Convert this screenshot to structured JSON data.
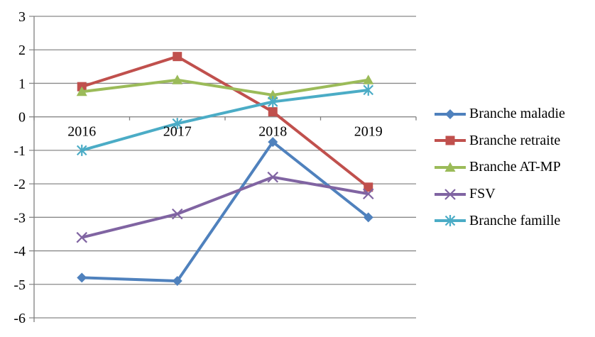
{
  "chart_data": {
    "type": "line",
    "title": "",
    "categories": [
      "2016",
      "2017",
      "2018",
      "2019"
    ],
    "series": [
      {
        "name": "Branche maladie",
        "color": "#4F81BD",
        "marker": "diamond",
        "values": [
          -4.8,
          -4.9,
          -0.75,
          -3.0
        ]
      },
      {
        "name": "Branche retraite",
        "color": "#C0504D",
        "marker": "square",
        "values": [
          0.9,
          1.8,
          0.15,
          -2.1
        ]
      },
      {
        "name": "Branche AT-MP",
        "color": "#9BBB59",
        "marker": "triangle",
        "values": [
          0.75,
          1.1,
          0.65,
          1.1
        ]
      },
      {
        "name": "FSV",
        "color": "#8064A2",
        "marker": "x",
        "values": [
          -3.6,
          -2.9,
          -1.8,
          -2.3
        ]
      },
      {
        "name": "Branche famille",
        "color": "#4BACC6",
        "marker": "asterisk",
        "values": [
          -1.0,
          -0.2,
          0.45,
          0.8
        ]
      }
    ],
    "xlabel": "",
    "ylabel": "",
    "ylim": [
      -6,
      3
    ],
    "y_ticks": [
      3,
      2,
      1,
      0,
      -1,
      -2,
      -3,
      -4,
      -5,
      -6
    ],
    "grid": true,
    "legend_position": "right",
    "grid_color": "#898989",
    "axis_color": "#808080",
    "text_color": "#000000",
    "background_color": "#FFFFFF"
  }
}
